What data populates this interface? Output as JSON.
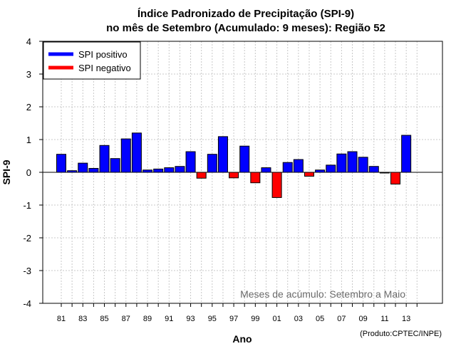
{
  "chart_data": {
    "type": "bar",
    "title": "Índice Padronizado de Precipitação (SPI-9)",
    "subtitle": "no mês de Setembro (Acumulado: 9 meses): Região 52",
    "xlabel": "Ano",
    "ylabel": "SPI-9",
    "ylim": [
      -4,
      4
    ],
    "yticks": [
      -4,
      -3,
      -2,
      -1,
      0,
      1,
      2,
      3,
      4
    ],
    "xtick_labels": [
      "81",
      "83",
      "85",
      "87",
      "89",
      "91",
      "93",
      "95",
      "97",
      "99",
      "01",
      "03",
      "05",
      "07",
      "09",
      "11",
      "13"
    ],
    "categories": [
      "1981",
      "1982",
      "1983",
      "1984",
      "1985",
      "1986",
      "1987",
      "1988",
      "1989",
      "1990",
      "1991",
      "1992",
      "1993",
      "1994",
      "1995",
      "1996",
      "1997",
      "1998",
      "1999",
      "2000",
      "2001",
      "2002",
      "2003",
      "2004",
      "2005",
      "2006",
      "2007",
      "2008",
      "2009",
      "2010",
      "2011",
      "2012",
      "2013"
    ],
    "values": [
      0.55,
      0.05,
      0.28,
      0.12,
      0.82,
      0.42,
      1.02,
      1.2,
      0.07,
      0.1,
      0.14,
      0.18,
      0.63,
      -0.18,
      0.55,
      1.09,
      -0.17,
      0.8,
      -0.32,
      0.14,
      -0.77,
      0.3,
      0.39,
      -0.12,
      0.07,
      0.22,
      0.56,
      0.63,
      0.46,
      0.18,
      -0.02,
      -0.36,
      1.13
    ],
    "grid": true,
    "legend": {
      "position": "top-left",
      "entries": [
        {
          "label": "SPI positivo",
          "color": "#0000ff"
        },
        {
          "label": "SPI negativo",
          "color": "#ff0000"
        }
      ]
    },
    "annotation": "Meses de acúmulo: Setembro a Maio",
    "credit": "(Produto:CPTEC/INPE)",
    "colors": {
      "positive": "#0000ff",
      "negative": "#ff0000",
      "grid": "#c8c8c8"
    }
  }
}
